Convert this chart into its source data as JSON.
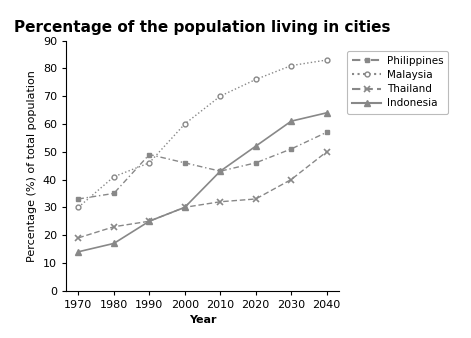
{
  "title": "Percentage of the population living in cities",
  "xlabel": "Year",
  "ylabel": "Percentage (%) of total population",
  "years": [
    1970,
    1980,
    1990,
    2000,
    2010,
    2020,
    2030,
    2040
  ],
  "philippines": [
    33,
    35,
    49,
    46,
    43,
    46,
    51,
    57
  ],
  "malaysia": [
    30,
    41,
    46,
    60,
    70,
    76,
    81,
    83
  ],
  "thailand": [
    19,
    23,
    25,
    30,
    32,
    33,
    40,
    50
  ],
  "indonesia": [
    14,
    17,
    25,
    30,
    43,
    52,
    61,
    64
  ],
  "line_color": "#888888",
  "ylim": [
    0,
    90
  ],
  "yticks": [
    0,
    10,
    20,
    30,
    40,
    50,
    60,
    70,
    80,
    90
  ],
  "title_fontsize": 11,
  "label_fontsize": 8,
  "tick_fontsize": 8,
  "legend_fontsize": 7.5
}
